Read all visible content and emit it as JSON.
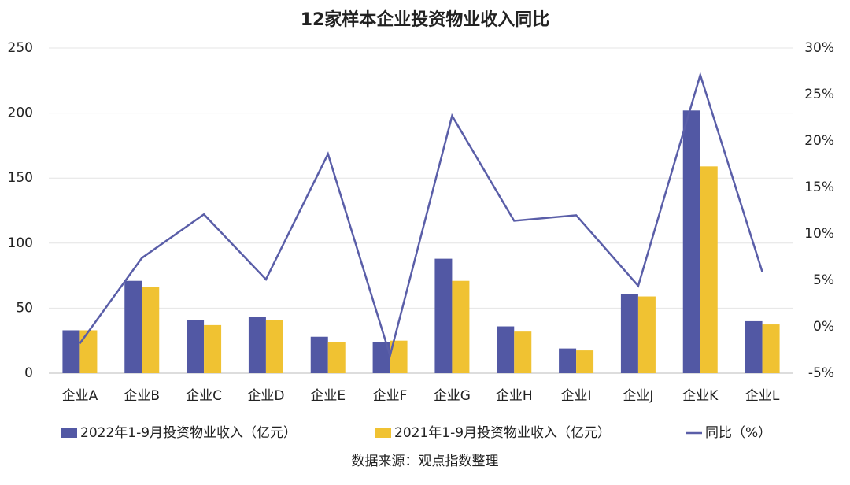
{
  "chart_data": {
    "type": "bar-line",
    "title": "12家样本企业投资物业收入同比",
    "categories": [
      "企业A",
      "企业B",
      "企业C",
      "企业D",
      "企业E",
      "企业F",
      "企业G",
      "企业H",
      "企业I",
      "企业J",
      "企业K",
      "企业L"
    ],
    "series": [
      {
        "name": "2022年1-9月投资物业收入（亿元）",
        "type": "bar",
        "color": "#5258a4",
        "values": [
          33,
          71,
          41,
          43,
          28,
          24,
          88,
          36,
          19,
          61,
          202,
          40
        ]
      },
      {
        "name": "2021年1-9月投资物业收入（亿元）",
        "type": "bar",
        "color": "#f0c232",
        "values": [
          33,
          66,
          37,
          41,
          24,
          25,
          71,
          32,
          17.5,
          59,
          159,
          37.5
        ]
      },
      {
        "name": "同比（%）",
        "type": "line",
        "axis": "y2",
        "color": "#5a5ea8",
        "values": [
          -1.8,
          7.4,
          12.1,
          5.1,
          18.6,
          -3.1,
          22.7,
          11.4,
          12.0,
          4.4,
          27.1,
          5.9
        ]
      }
    ],
    "ylim": [
      0,
      250
    ],
    "yticks": [
      0,
      50,
      100,
      150,
      200,
      250
    ],
    "y2lim": [
      -5,
      30
    ],
    "y2ticks": [
      {
        "value": -5,
        "label": "-5%"
      },
      {
        "value": 0,
        "label": "0%"
      },
      {
        "value": 5,
        "label": "5%"
      },
      {
        "value": 10,
        "label": "10%"
      },
      {
        "value": 15,
        "label": "15%"
      },
      {
        "value": 20,
        "label": "20%"
      },
      {
        "value": 25,
        "label": "25%"
      },
      {
        "value": 30,
        "label": "30%"
      }
    ],
    "grid": true,
    "source": "数据来源：观点指数整理"
  }
}
